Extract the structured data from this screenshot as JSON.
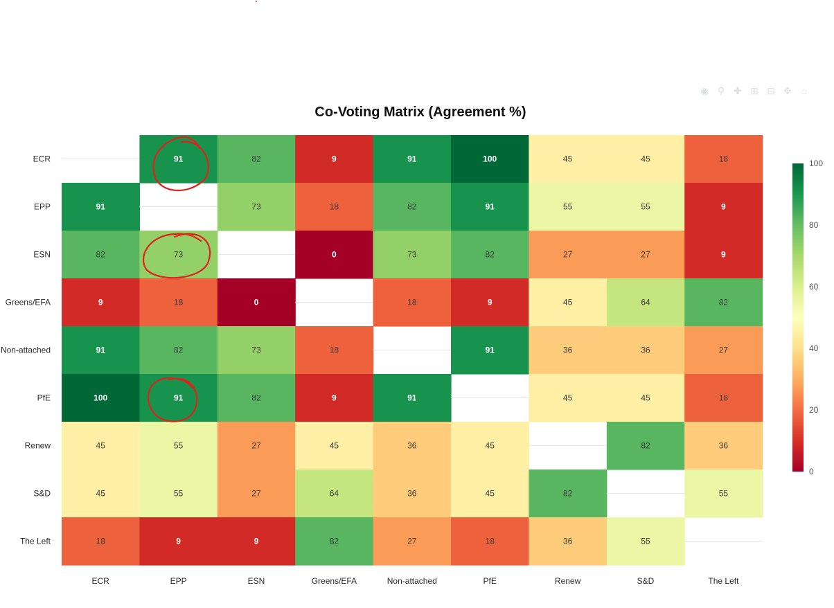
{
  "toolbar": {
    "icons": [
      "camera-icon",
      "zoom-icon",
      "pan-icon",
      "zoom-in-icon",
      "zoom-out-icon",
      "autoscale-icon",
      "reset-icon"
    ]
  },
  "chart_data": {
    "type": "heatmap",
    "title": "Co-Voting Matrix (Agreement %)",
    "xlabel": "",
    "ylabel": "",
    "x_categories": [
      "ECR",
      "EPP",
      "ESN",
      "Greens/EFA",
      "Non-attached",
      "PfE",
      "Renew",
      "S&D",
      "The Left"
    ],
    "y_categories": [
      "ECR",
      "EPP",
      "ESN",
      "Greens/EFA",
      "Non-attached",
      "PfE",
      "Renew",
      "S&D",
      "The Left"
    ],
    "values": [
      [
        null,
        91,
        82,
        9,
        91,
        100,
        45,
        45,
        18
      ],
      [
        91,
        null,
        73,
        18,
        82,
        91,
        55,
        55,
        9
      ],
      [
        82,
        73,
        null,
        0,
        73,
        82,
        27,
        27,
        9
      ],
      [
        9,
        18,
        0,
        null,
        18,
        9,
        45,
        64,
        82
      ],
      [
        91,
        82,
        73,
        18,
        null,
        91,
        36,
        36,
        27
      ],
      [
        100,
        91,
        82,
        9,
        91,
        null,
        45,
        45,
        18
      ],
      [
        45,
        55,
        27,
        45,
        36,
        45,
        null,
        82,
        36
      ],
      [
        45,
        55,
        27,
        64,
        36,
        45,
        82,
        null,
        55
      ],
      [
        18,
        9,
        9,
        82,
        27,
        18,
        36,
        55,
        null
      ]
    ],
    "zrange": [
      0,
      100
    ],
    "colorscale": "RdYlGn",
    "colorbar": {
      "ticks": [
        0,
        20,
        40,
        60,
        80,
        100
      ]
    },
    "annotations": {
      "circled_cells": [
        [
          "ECR",
          "EPP"
        ],
        [
          "ESN",
          "EPP"
        ],
        [
          "PfE",
          "EPP"
        ]
      ],
      "color": "#e0201a"
    }
  }
}
